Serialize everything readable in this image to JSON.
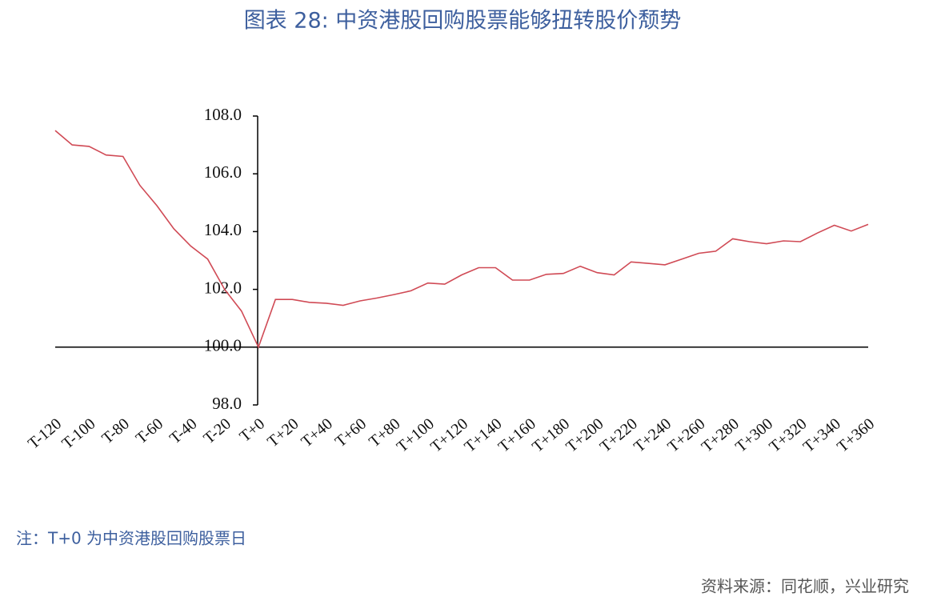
{
  "chart_data": {
    "type": "line",
    "title": "图表 28: 中资港股回购股票能够扭转股价颓势",
    "note": "注：T+0 为中资港股回购股票日",
    "source": "资料来源：同花顺，兴业研究",
    "categories": [
      "T-120",
      null,
      "T-100",
      null,
      "T-80",
      null,
      "T-60",
      null,
      "T-40",
      null,
      "T-20",
      null,
      "T+0",
      null,
      "T+20",
      null,
      "T+40",
      null,
      "T+60",
      null,
      "T+80",
      null,
      "T+100",
      null,
      "T+120",
      null,
      "T+140",
      null,
      "T+160",
      null,
      "T+180",
      null,
      "T+200",
      null,
      "T+220",
      null,
      "T+240",
      null,
      "T+260",
      null,
      "T+280",
      null,
      "T+300",
      null,
      "T+320",
      null,
      "T+340",
      null,
      "T+360"
    ],
    "values": [
      107.5,
      107.0,
      106.95,
      106.65,
      106.6,
      105.6,
      104.9,
      104.1,
      103.5,
      103.05,
      102.0,
      101.25,
      100.0,
      101.65,
      101.65,
      101.55,
      101.52,
      101.45,
      101.6,
      101.7,
      101.82,
      101.95,
      102.22,
      102.18,
      102.5,
      102.75,
      102.75,
      102.32,
      102.32,
      102.52,
      102.55,
      102.8,
      102.58,
      102.5,
      102.95,
      102.9,
      102.85,
      103.05,
      103.25,
      103.32,
      103.75,
      103.65,
      103.58,
      103.68,
      103.65,
      103.95,
      104.22,
      104.02,
      104.25
    ],
    "color": "#d04a55",
    "ylim": [
      98,
      108
    ],
    "yticks": [
      {
        "value": 98,
        "label": "98.0"
      },
      {
        "value": 100,
        "label": "100.0"
      },
      {
        "value": 102,
        "label": "102.0"
      },
      {
        "value": 104,
        "label": "104.0"
      },
      {
        "value": 106,
        "label": "106.0"
      },
      {
        "value": 108,
        "label": "108.0"
      }
    ],
    "axis_cross": 100
  }
}
